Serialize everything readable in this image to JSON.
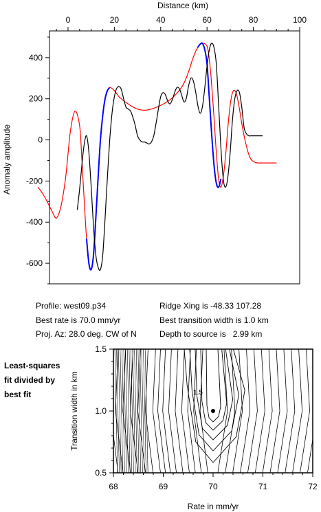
{
  "chart_data": [
    {
      "type": "line",
      "xlabel": "Distance (km)",
      "ylabel": "Anomaly amplitude",
      "xlim": [
        -8,
        100
      ],
      "ylim": [
        -700,
        530
      ],
      "xticks": [
        0,
        20,
        40,
        60,
        80,
        100
      ],
      "yticks": [
        -600,
        -400,
        -200,
        0,
        200,
        400
      ],
      "xaxis_position": "top",
      "grid": false,
      "series": [
        {
          "role": "observed",
          "color": "#000000",
          "x": [
            4,
            5,
            6,
            7,
            8,
            9,
            10,
            11,
            12,
            13,
            14,
            15,
            16,
            17,
            18,
            19,
            20,
            21,
            22,
            23,
            24,
            25,
            26,
            27,
            28,
            29,
            30,
            31,
            32,
            33,
            34,
            35,
            36,
            37,
            38,
            39,
            40,
            41,
            42,
            43,
            44,
            45,
            46,
            47,
            48,
            49,
            50,
            51,
            52,
            53,
            54,
            55,
            56,
            57,
            58,
            59,
            60,
            61,
            62,
            63,
            64,
            65,
            66,
            67,
            68,
            69,
            70,
            71,
            72,
            73,
            74,
            75,
            76,
            77,
            78,
            79,
            80,
            81,
            82,
            83,
            84
          ],
          "y": [
            -340,
            -240,
            -120,
            -20,
            20,
            -60,
            -230,
            -420,
            -560,
            -620,
            -630,
            -560,
            -380,
            -180,
            0,
            130,
            210,
            250,
            260,
            245,
            200,
            160,
            150,
            140,
            110,
            70,
            20,
            0,
            -10,
            -10,
            -15,
            -20,
            -10,
            20,
            80,
            150,
            210,
            230,
            220,
            190,
            175,
            195,
            230,
            255,
            250,
            220,
            185,
            200,
            260,
            300,
            290,
            240,
            170,
            130,
            160,
            250,
            360,
            440,
            470,
            450,
            370,
            170,
            -40,
            -190,
            -230,
            -180,
            -60,
            100,
            200,
            240,
            230,
            160,
            60,
            30,
            20,
            20,
            20,
            20,
            20,
            20,
            20
          ]
        },
        {
          "role": "best-fit model",
          "color": "#ff0000",
          "x": [
            -13,
            -11,
            -9,
            -7,
            -5,
            -3,
            -1,
            1,
            3,
            5,
            6,
            7,
            8,
            9,
            10,
            11,
            12,
            13,
            14,
            15,
            16,
            17,
            18,
            19,
            20,
            21,
            22,
            23,
            24,
            26,
            28,
            30,
            32,
            34,
            36,
            38,
            40,
            42,
            44,
            46,
            48,
            50,
            52,
            54,
            56,
            58,
            60,
            61,
            62,
            63,
            64,
            65,
            66,
            67,
            68,
            69,
            70,
            71,
            72,
            73,
            74,
            75,
            76,
            77,
            78,
            79,
            80,
            81,
            82,
            83,
            84,
            85,
            86,
            88,
            90
          ],
          "y": [
            -230,
            -260,
            -300,
            -345,
            -380,
            -320,
            -180,
            40,
            140,
            70,
            -100,
            -300,
            -480,
            -600,
            -630,
            -560,
            -380,
            -180,
            0,
            120,
            200,
            240,
            255,
            250,
            240,
            225,
            210,
            200,
            190,
            175,
            160,
            150,
            145,
            145,
            150,
            158,
            168,
            180,
            195,
            215,
            240,
            275,
            330,
            400,
            450,
            470,
            455,
            390,
            270,
            110,
            -60,
            -190,
            -230,
            -180,
            -80,
            60,
            170,
            230,
            240,
            210,
            150,
            80,
            20,
            -30,
            -70,
            -95,
            -105,
            -110,
            -112,
            -112,
            -112,
            -112,
            -112,
            -112,
            -112
          ]
        },
        {
          "role": "fit window",
          "color": "#0000ff",
          "segments": [
            {
              "x": [
                8,
                9,
                10,
                11,
                12,
                13,
                14,
                15,
                16,
                17,
                18
              ],
              "y": [
                -480,
                -600,
                -630,
                -560,
                -380,
                -180,
                0,
                120,
                200,
                240,
                255
              ]
            },
            {
              "x": [
                56,
                57,
                58,
                59,
                60,
                61,
                62,
                63,
                64,
                65,
                66
              ],
              "y": [
                450,
                465,
                470,
                440,
                370,
                200,
                30,
                -120,
                -210,
                -230,
                -190
              ]
            }
          ]
        }
      ]
    },
    {
      "type": "contour",
      "xlabel": "Rate in mm/yr",
      "ylabel": "Transition width in km",
      "xlim": [
        68,
        72
      ],
      "ylim": [
        0.5,
        1.5
      ],
      "xticks": [
        68,
        69,
        70,
        71,
        72
      ],
      "yticks": [
        0.5,
        1.0,
        1.5
      ],
      "minimum": {
        "x": 70.0,
        "y": 1.0
      },
      "contour_label": "1.5",
      "grid": false
    }
  ],
  "info": {
    "profile": "Profile: west09.p34",
    "best_rate": "Best rate is 70.0 mm/yr",
    "proj_az": "Proj. Az: 28.0 deg. CW of N",
    "ridge_xing": "Ridge Xing is -48.33 107.28",
    "best_transition": "Best transition width is 1.0 km",
    "depth_label": "Depth to source is",
    "depth_value": "2.99 km"
  },
  "side_note": [
    "Least-squares",
    "fit divided by",
    "best fit"
  ]
}
